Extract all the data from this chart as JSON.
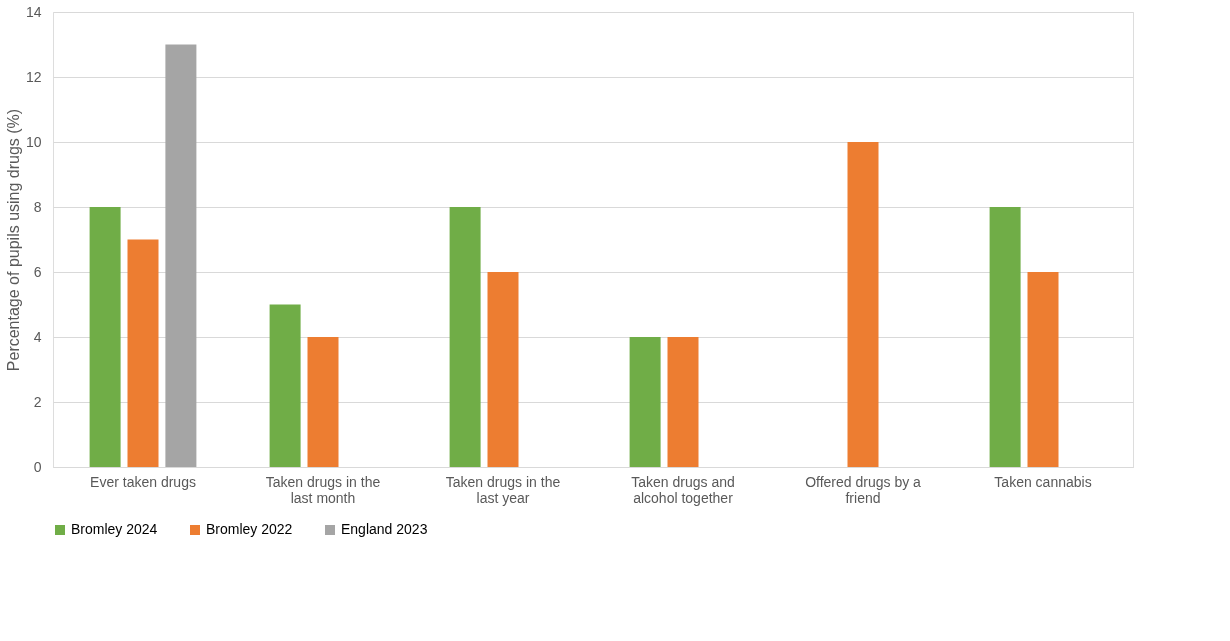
{
  "chart_data": {
    "type": "bar",
    "ylabel": "Percentage of pupils using drugs (%)",
    "categories": [
      "Ever taken drugs",
      "Taken drugs in the last month",
      "Taken drugs in the last year",
      "Taken drugs and alcohol together",
      "Offered drugs by a friend",
      "Taken cannabis"
    ],
    "series": [
      {
        "name": "Bromley 2024",
        "color": "#70ad47",
        "values": [
          8,
          5,
          8,
          4,
          null,
          8
        ]
      },
      {
        "name": "Bromley 2022",
        "color": "#ed7d31",
        "values": [
          7,
          4,
          6,
          4,
          10,
          6
        ]
      },
      {
        "name": "England 2023",
        "color": "#a5a5a5",
        "values": [
          13,
          null,
          null,
          null,
          null,
          null
        ]
      }
    ],
    "ylim": [
      0,
      14
    ],
    "yticks": [
      0,
      2,
      4,
      6,
      8,
      10,
      12,
      14
    ],
    "grid": "y",
    "legend": "bottom"
  }
}
